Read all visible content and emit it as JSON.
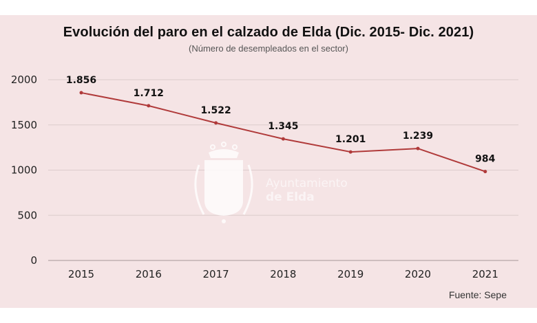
{
  "chart_data": {
    "type": "line",
    "title": "Evolución del paro en el calzado de Elda (Dic. 2015- Dic. 2021)",
    "subtitle": "(Número de desempleados en el sector)",
    "xlabel": "",
    "ylabel": "",
    "categories": [
      "2015",
      "2016",
      "2017",
      "2018",
      "2019",
      "2020",
      "2021"
    ],
    "values": [
      1856,
      1712,
      1522,
      1345,
      1201,
      1239,
      984
    ],
    "data_labels": [
      "1.856",
      "1.712",
      "1.522",
      "1.345",
      "1.201",
      "1.239",
      "984"
    ],
    "ylim": [
      0,
      2000
    ],
    "yticks": [
      0,
      500,
      1000,
      1500,
      2000
    ],
    "grid": true,
    "legend": "none",
    "series_color": "#b03a3a",
    "source": "Fuente: Sepe"
  },
  "watermark": {
    "line1": "Ayuntamiento",
    "line2": "de Elda",
    "icon": "coat-of-arms-icon"
  },
  "colors": {
    "background": "#f5e4e5",
    "gridline": "#dccbcc",
    "line": "#b03a3a"
  }
}
